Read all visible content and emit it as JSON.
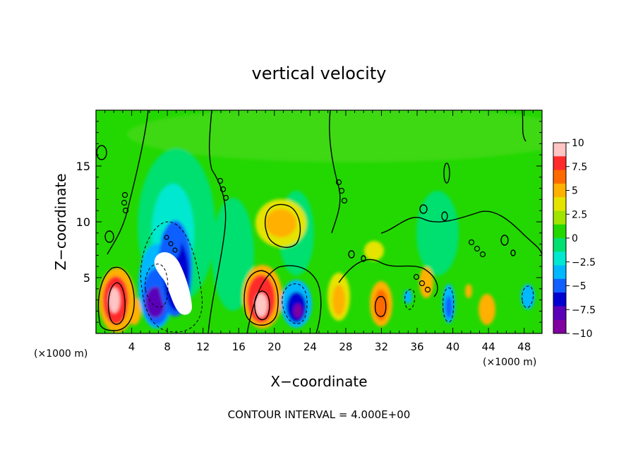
{
  "chart_data": {
    "type": "heatmap",
    "title": "vertical velocity",
    "xlabel": "X−coordinate",
    "ylabel": "Z−coordinate",
    "x_unit_left": "(×1000 m)",
    "x_unit_right": "(×1000 m)",
    "footer": "CONTOUR INTERVAL = 4.000E+00",
    "xlim": [
      0,
      50
    ],
    "ylim": [
      0,
      20
    ],
    "x_ticks": [
      4,
      8,
      12,
      16,
      20,
      24,
      28,
      32,
      36,
      40,
      44,
      48
    ],
    "x_tick_labels": [
      "4",
      "8",
      "12",
      "16",
      "20",
      "24",
      "28",
      "32",
      "36",
      "40",
      "44",
      "48"
    ],
    "y_ticks": [
      5,
      10,
      15
    ],
    "y_tick_labels": [
      "5",
      "10",
      "15"
    ],
    "colorbar": {
      "range": [
        -10,
        10
      ],
      "ticks": [
        10,
        7.5,
        5,
        2.5,
        0,
        -2.5,
        -5,
        -7.5,
        -10
      ],
      "tick_labels": [
        "10",
        "7.5",
        "5",
        "2.5",
        "0",
        "−2.5",
        "−5",
        "−7.5",
        "−10"
      ],
      "colors": [
        "#ffc4c4",
        "#ff2a2a",
        "#ff6a00",
        "#ffb000",
        "#e4e400",
        "#a0e400",
        "#22d800",
        "#00e070",
        "#00e8d0",
        "#00b8ff",
        "#1060ff",
        "#0000d0",
        "#5a00b8",
        "#8000a0"
      ]
    },
    "features": [
      {
        "kind": "updraft",
        "x": 1.8,
        "z": 3.0,
        "value": 10
      },
      {
        "kind": "downdraft",
        "x": 7.0,
        "z": 3.5,
        "value": -10
      },
      {
        "kind": "updraft",
        "x": 8.8,
        "z": 4.8,
        "value": 11
      },
      {
        "kind": "updraft",
        "x": 18.5,
        "z": 2.5,
        "value": 10
      },
      {
        "kind": "downdraft",
        "x": 22.5,
        "z": 2.0,
        "value": -9
      },
      {
        "kind": "updraft",
        "x": 20.5,
        "z": 10.0,
        "value": 5
      },
      {
        "kind": "updraft",
        "x": 26.8,
        "z": 3.0,
        "value": 5
      },
      {
        "kind": "updraft",
        "x": 32.0,
        "z": 2.5,
        "value": 7
      },
      {
        "kind": "updraft",
        "x": 37.0,
        "z": 5.0,
        "value": 4
      },
      {
        "kind": "downdraft",
        "x": 39.5,
        "z": 2.5,
        "value": -5
      },
      {
        "kind": "updraft",
        "x": 43.5,
        "z": 2.0,
        "value": 4
      },
      {
        "kind": "downdraft",
        "x": 47.5,
        "z": 3.0,
        "value": -4
      }
    ]
  }
}
